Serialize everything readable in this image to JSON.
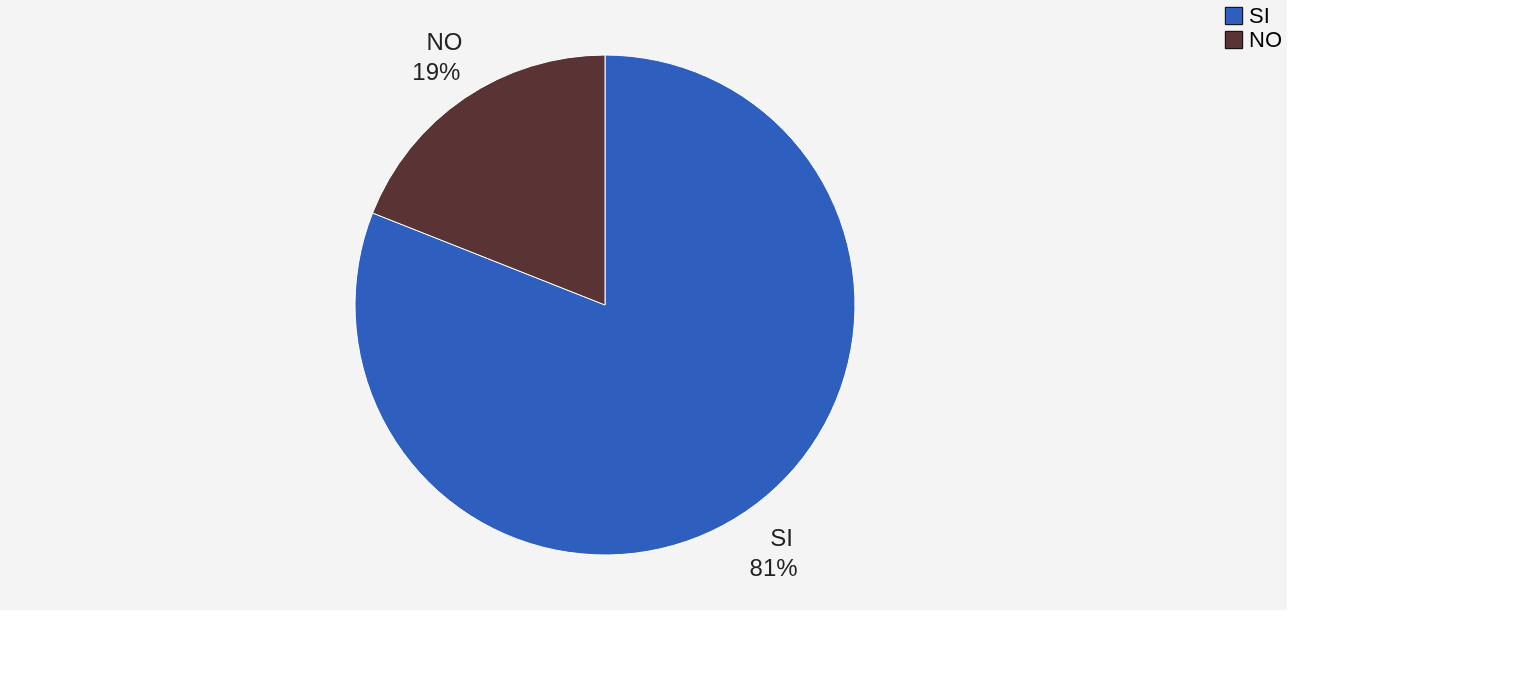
{
  "chart_data": {
    "type": "pie",
    "categories": [
      "SI",
      "NO"
    ],
    "values": [
      81,
      19
    ],
    "value_labels": [
      "81%",
      "19%"
    ],
    "colors": [
      "#2e5fbf",
      "#5a3434"
    ],
    "legend": "right"
  }
}
